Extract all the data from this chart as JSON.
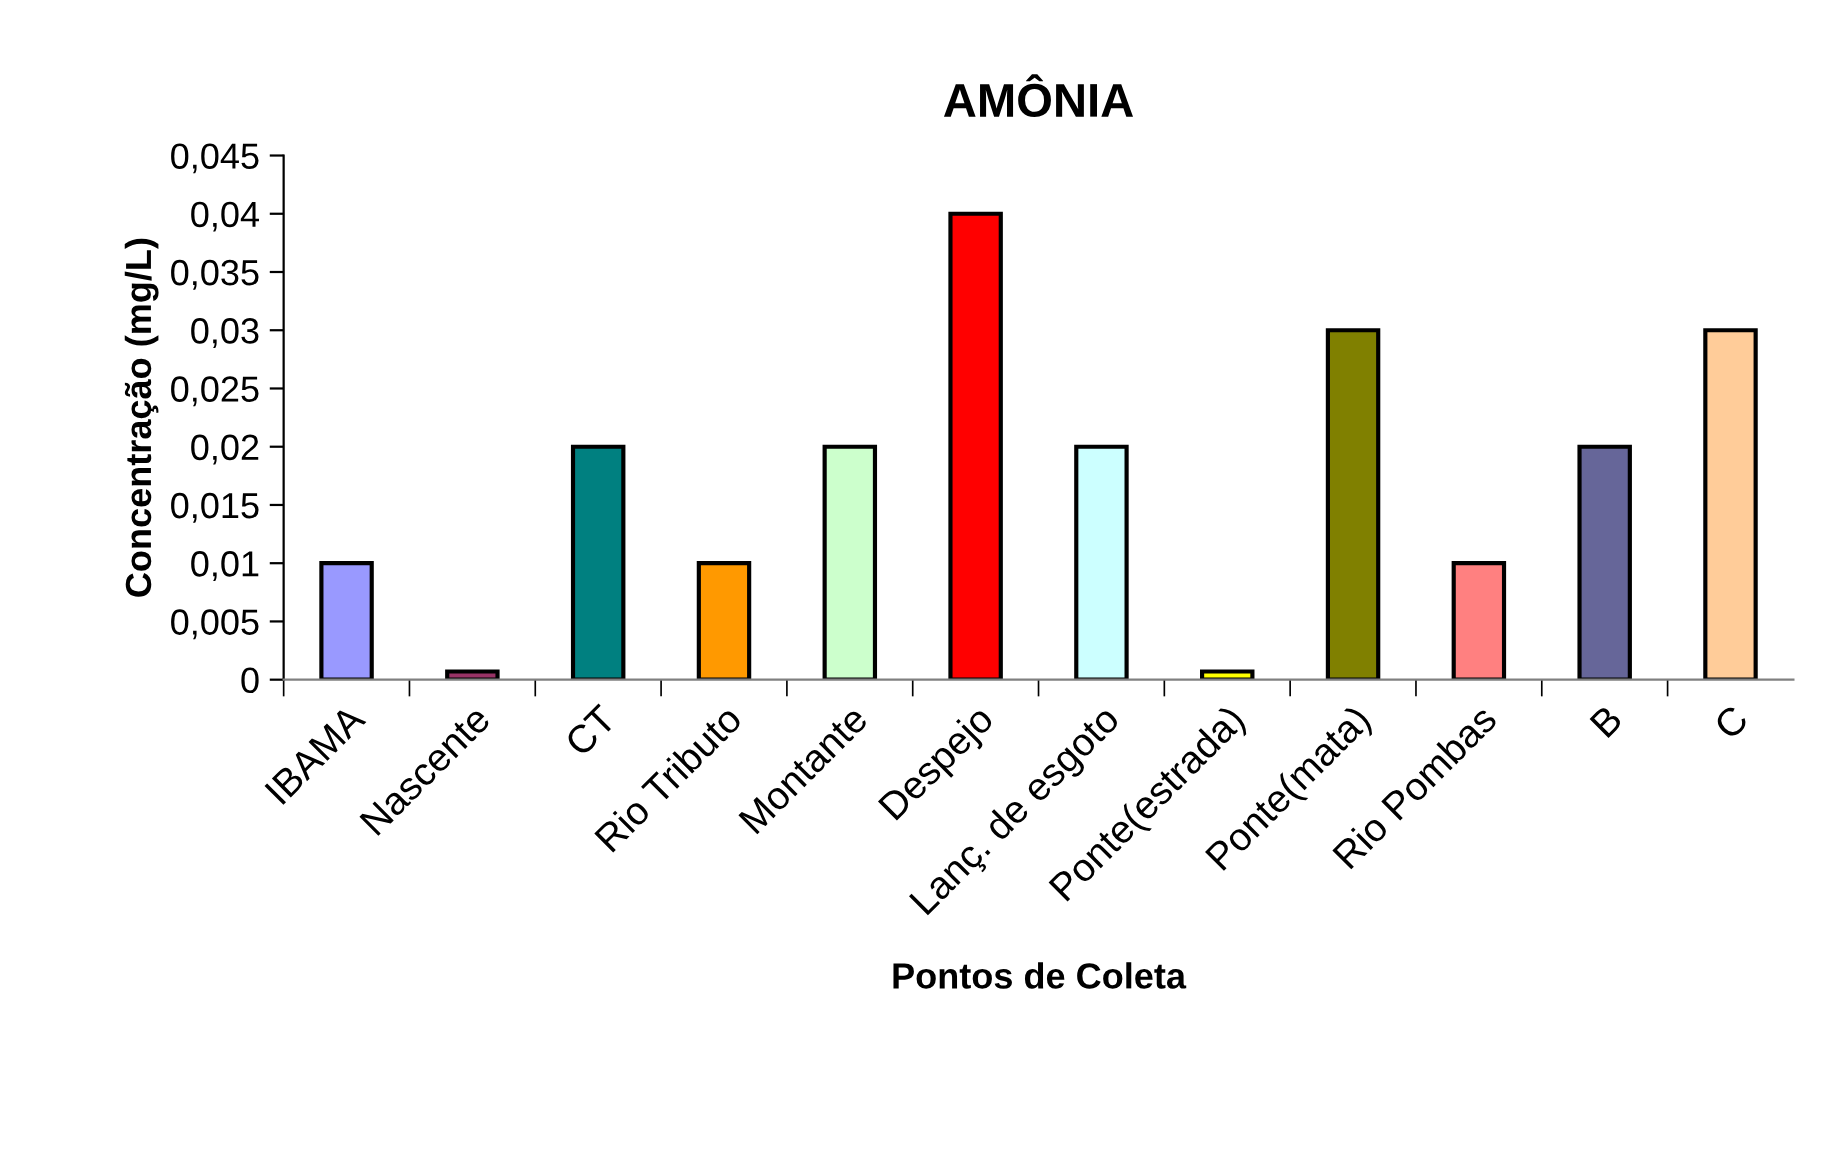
{
  "chart_data": {
    "type": "bar",
    "title": "AMÔNIA",
    "xlabel": "Pontos de Coleta",
    "ylabel": "Concentração (mg/L)",
    "categories": [
      "IBAMA",
      "Nascente",
      "CT",
      "Rio Tributo",
      "Montante",
      "Despejo",
      "Lanç. de esgoto",
      "Ponte(estrada)",
      "Ponte(mata)",
      "Rio Pombas",
      "B",
      "C"
    ],
    "values": [
      0.01,
      0.0007,
      0.02,
      0.01,
      0.02,
      0.04,
      0.02,
      0.0007,
      0.03,
      0.01,
      0.02,
      0.03
    ],
    "colors": [
      "#9999ff",
      "#993366",
      "#008080",
      "#ff9900",
      "#ccffcc",
      "#ff0000",
      "#ccffff",
      "#ffff00",
      "#808000",
      "#ff8080",
      "#666699",
      "#ffcc99"
    ],
    "ylim": [
      0,
      0.045
    ],
    "yticks": [
      0,
      {
        "value": 0.005,
        "label": "0,005"
      },
      {
        "value": 0.01,
        "label": "0,01"
      },
      {
        "value": 0.015,
        "label": "0,015"
      },
      {
        "value": 0.02,
        "label": "0,02"
      },
      {
        "value": 0.025,
        "label": "0,025"
      },
      {
        "value": 0.03,
        "label": "0,03"
      },
      {
        "value": 0.035,
        "label": "0,035"
      },
      {
        "value": 0.04,
        "label": "0,04"
      },
      {
        "value": 0.045,
        "label": "0,045"
      }
    ],
    "grid": false,
    "legend": false
  }
}
